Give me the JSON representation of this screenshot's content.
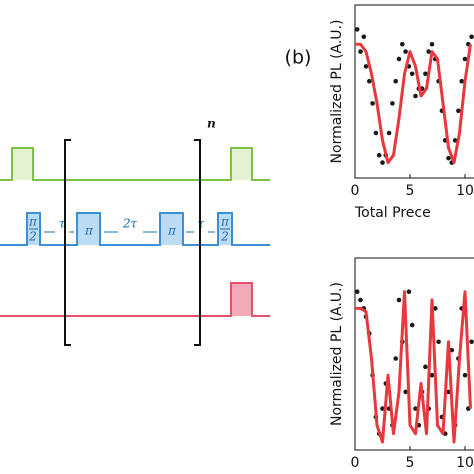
{
  "panel_label": "(b)",
  "diagram": {
    "pi_half_left": {
      "numerator": "π",
      "denominator": "2"
    },
    "tau_left": "τ",
    "pi_left": "π",
    "two_tau": "2τ",
    "pi_right": "π",
    "tau_right": "τ",
    "pi_half_right": {
      "numerator": "π",
      "denominator": "2"
    },
    "repeat": "n"
  },
  "chart_data": [
    {
      "type": "scatter",
      "ylabel": "Normalized PL (A.U.)",
      "xlabel": "Total Prece",
      "xlim": [
        0,
        20
      ],
      "ylim": [
        0,
        1
      ],
      "xticks": [
        0,
        5,
        10
      ],
      "series": [
        {
          "color": "#1a1a1a",
          "style": "markers",
          "x": [
            0.2,
            0.5,
            0.8,
            1.0,
            1.3,
            1.6,
            1.9,
            2.2,
            2.5,
            2.8,
            3.1,
            3.4,
            3.7,
            4.0,
            4.3,
            4.6,
            4.9,
            5.2,
            5.5,
            5.8,
            6.1,
            6.4,
            6.7,
            7.0,
            7.3,
            7.6,
            7.9,
            8.2,
            8.5,
            8.8,
            9.1,
            9.4,
            9.7,
            10.0,
            10.3,
            10.6
          ],
          "values": [
            0.95,
            0.8,
            0.9,
            0.7,
            0.6,
            0.45,
            0.25,
            0.1,
            0.05,
            0.1,
            0.25,
            0.45,
            0.6,
            0.75,
            0.85,
            0.8,
            0.7,
            0.65,
            0.5,
            0.55,
            0.55,
            0.65,
            0.8,
            0.85,
            0.75,
            0.6,
            0.4,
            0.2,
            0.08,
            0.05,
            0.2,
            0.4,
            0.6,
            0.75,
            0.85,
            0.9
          ]
        },
        {
          "color": "#e8383d",
          "style": "line",
          "x": [
            0,
            0.5,
            1,
            1.5,
            2,
            2.5,
            3,
            3.5,
            4,
            4.5,
            5,
            5.5,
            6,
            6.5,
            7,
            7.5,
            8,
            8.5,
            9,
            9.5,
            10,
            10.5
          ],
          "values": [
            0.85,
            0.85,
            0.8,
            0.65,
            0.45,
            0.2,
            0.05,
            0.1,
            0.35,
            0.65,
            0.8,
            0.7,
            0.5,
            0.55,
            0.8,
            0.75,
            0.45,
            0.15,
            0.05,
            0.25,
            0.6,
            0.85
          ]
        }
      ]
    },
    {
      "type": "scatter",
      "ylabel": "Normalized PL (A.U.)",
      "xlim": [
        0,
        20
      ],
      "ylim": [
        0,
        1
      ],
      "xticks": [
        0,
        5,
        10
      ],
      "series": [
        {
          "color": "#1a1a1a",
          "style": "markers",
          "x": [
            0.2,
            0.5,
            0.8,
            1.0,
            1.3,
            1.6,
            1.9,
            2.2,
            2.5,
            2.8,
            3.1,
            3.4,
            3.7,
            4.0,
            4.3,
            4.6,
            4.9,
            5.2,
            5.5,
            5.8,
            6.1,
            6.4,
            6.7,
            7.0,
            7.3,
            7.6,
            7.9,
            8.2,
            8.5,
            8.8,
            9.1,
            9.4,
            9.7,
            10.0,
            10.3,
            10.6
          ],
          "values": [
            0.9,
            0.85,
            0.8,
            0.75,
            0.65,
            0.4,
            0.15,
            0.05,
            0.2,
            0.35,
            0.2,
            0.1,
            0.5,
            0.85,
            0.6,
            0.3,
            0.9,
            0.7,
            0.2,
            0.1,
            0.3,
            0.45,
            0.2,
            0.4,
            0.8,
            0.6,
            0.15,
            0.05,
            0.3,
            0.55,
            0.1,
            0.5,
            0.8,
            0.4,
            0.2,
            0.6
          ]
        },
        {
          "color": "#e8383d",
          "style": "line",
          "x": [
            0,
            0.5,
            1,
            1.5,
            2,
            2.5,
            3,
            3.5,
            4,
            4.5,
            5,
            5.5,
            6,
            6.5,
            7,
            7.5,
            8,
            8.5,
            9,
            9.5,
            10,
            10.5
          ],
          "values": [
            0.8,
            0.8,
            0.78,
            0.5,
            0.1,
            0.0,
            0.4,
            0.05,
            0.3,
            0.9,
            0.1,
            0.05,
            0.35,
            0.05,
            0.85,
            0.1,
            0.05,
            0.6,
            0.0,
            0.5,
            0.9,
            0.2
          ]
        }
      ]
    }
  ]
}
